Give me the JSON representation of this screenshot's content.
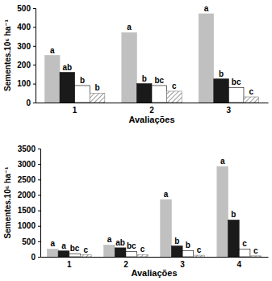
{
  "chart_data": [
    {
      "type": "bar",
      "x_label": "Avaliações",
      "y_label": "Sementes.10⁶ ha⁻¹",
      "categories": [
        "1",
        "2",
        "3"
      ],
      "ylim": [
        0,
        500
      ],
      "yticks": [
        0,
        100,
        200,
        300,
        400,
        500
      ],
      "series": [
        {
          "color": "#c0c0c0",
          "values": [
            250,
            370,
            470
          ],
          "letters": [
            "a",
            "a",
            "a"
          ]
        },
        {
          "color": "#1a1a1a",
          "values": [
            160,
            100,
            125
          ],
          "letters": [
            "ab",
            "b",
            "b"
          ]
        },
        {
          "color": "#ffffff",
          "values": [
            90,
            90,
            80
          ],
          "letters": [
            "b",
            "bc",
            "bc"
          ]
        },
        {
          "color": "#808080",
          "marker": "hatch",
          "values": [
            50,
            60,
            30
          ],
          "letters": [
            "b",
            "c",
            "c"
          ]
        }
      ]
    },
    {
      "type": "bar",
      "x_label": "Avaliações",
      "y_label": "Sementes.10⁶ ha⁻¹",
      "categories": [
        "1",
        "2",
        "3",
        "4"
      ],
      "ylim": [
        0,
        3500
      ],
      "yticks": [
        0,
        500,
        1000,
        1500,
        2000,
        2500,
        3000,
        3500
      ],
      "series": [
        {
          "color": "#c0c0c0",
          "values": [
            250,
            380,
            1850,
            2920
          ],
          "letters": [
            "a",
            "a",
            "a",
            "a"
          ]
        },
        {
          "color": "#1a1a1a",
          "values": [
            190,
            290,
            350,
            1190
          ],
          "letters": [
            "a",
            "ab",
            "b",
            "b"
          ]
        },
        {
          "color": "#ffffff",
          "values": [
            100,
            170,
            200,
            250
          ],
          "letters": [
            "bc",
            "bc",
            "b",
            "c"
          ]
        },
        {
          "color": "#808080",
          "marker": "hatch",
          "values": [
            60,
            70,
            50,
            30
          ],
          "letters": [
            "c",
            "c",
            "c",
            "c"
          ]
        }
      ]
    }
  ]
}
